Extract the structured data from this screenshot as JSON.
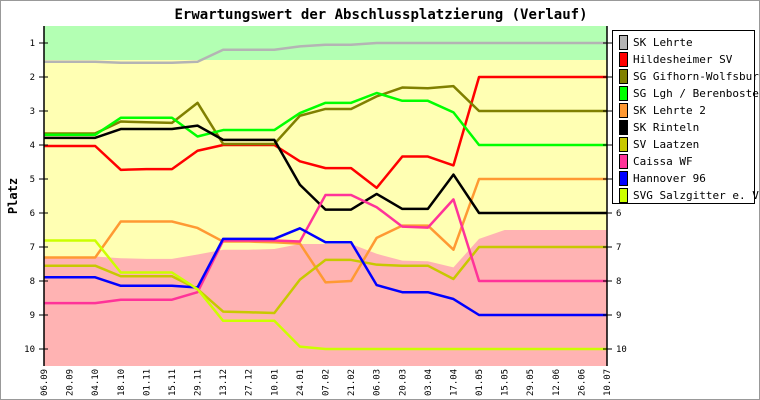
{
  "chart_data": {
    "type": "line",
    "title": "Erwartungswert der Abschlussplatzierung (Verlauf)",
    "xlabel": "",
    "ylabel": "Platz",
    "ylim": [
      10.5,
      0.5
    ],
    "y_ticks": [
      1,
      2,
      3,
      4,
      5,
      6,
      7,
      8,
      9,
      10
    ],
    "y_inverted": true,
    "legend_position": "right",
    "categories": [
      "06.09",
      "20.09",
      "04.10",
      "18.10",
      "01.11",
      "15.11",
      "29.11",
      "13.12",
      "27.12",
      "10.01",
      "24.01",
      "07.02",
      "21.02",
      "06.03",
      "20.03",
      "03.04",
      "17.04",
      "01.05",
      "15.05",
      "29.05",
      "12.06",
      "26.06",
      "10.07"
    ],
    "zones": {
      "promotion": {
        "color": "#b3ffb3",
        "from": 0.5,
        "to": 1.5
      },
      "middle": {
        "color": "#ffffb3"
      },
      "relegation": {
        "color": "#ffb3b3",
        "boundary": [
          7.28,
          7.28,
          7.28,
          7.33,
          7.35,
          7.35,
          7.22,
          7.08,
          7.08,
          7.06,
          6.91,
          6.91,
          6.91,
          7.2,
          7.4,
          7.42,
          7.6,
          6.76,
          6.5,
          6.5,
          6.5,
          6.5,
          6.5
        ]
      }
    },
    "series": [
      {
        "name": "SK Lehrte",
        "color": "#b4b4b4",
        "values": [
          1.55,
          1.55,
          1.55,
          1.58,
          1.58,
          1.58,
          1.55,
          1.2,
          1.2,
          1.2,
          1.1,
          1.05,
          1.05,
          1,
          1,
          1,
          1,
          1,
          1,
          1,
          1,
          1,
          1
        ]
      },
      {
        "name": "Hildesheimer SV",
        "color": "#ff0000",
        "values": [
          4.03,
          4.03,
          4.03,
          4.73,
          4.71,
          4.71,
          4.17,
          4.0,
          4.0,
          4.0,
          4.48,
          4.68,
          4.68,
          5.26,
          4.34,
          4.34,
          4.6,
          2,
          2,
          2,
          2,
          2,
          2
        ]
      },
      {
        "name": "SG Gifhorn-Wolfsburg",
        "color": "#808000",
        "values": [
          3.66,
          3.66,
          3.66,
          3.31,
          3.33,
          3.35,
          2.76,
          3.97,
          3.97,
          3.97,
          3.14,
          2.94,
          2.94,
          2.57,
          2.31,
          2.33,
          2.27,
          3,
          3,
          3,
          3,
          3,
          3
        ]
      },
      {
        "name": "SG Lgh / Berenbostel",
        "color": "#00ff00",
        "values": [
          3.7,
          3.7,
          3.7,
          3.2,
          3.2,
          3.2,
          3.75,
          3.56,
          3.56,
          3.56,
          3.06,
          2.76,
          2.76,
          2.47,
          2.7,
          2.7,
          3.04,
          4,
          4,
          4,
          4,
          4,
          4
        ]
      },
      {
        "name": "SK Lehrte 2",
        "color": "#ff9933",
        "values": [
          7.31,
          7.31,
          7.31,
          6.25,
          6.25,
          6.25,
          6.44,
          6.84,
          6.84,
          6.86,
          6.9,
          8.04,
          8.0,
          6.73,
          6.37,
          6.37,
          7.08,
          5,
          5,
          5,
          5,
          5,
          5
        ]
      },
      {
        "name": "SK Rinteln",
        "color": "#000000",
        "values": [
          3.79,
          3.79,
          3.79,
          3.53,
          3.53,
          3.53,
          3.43,
          3.85,
          3.85,
          3.85,
          5.17,
          5.9,
          5.9,
          5.44,
          5.88,
          5.88,
          4.87,
          6,
          6,
          6,
          6,
          6,
          6
        ]
      },
      {
        "name": "SV Laatzen",
        "color": "#c8c800",
        "values": [
          7.55,
          7.55,
          7.55,
          7.86,
          7.86,
          7.86,
          8.24,
          8.9,
          8.92,
          8.94,
          7.96,
          7.38,
          7.38,
          7.52,
          7.55,
          7.55,
          7.94,
          7,
          7,
          7,
          7,
          7,
          7
        ]
      },
      {
        "name": "Caissa WF",
        "color": "#ff3399",
        "values": [
          8.65,
          8.65,
          8.65,
          8.55,
          8.55,
          8.55,
          8.33,
          6.81,
          6.81,
          6.81,
          6.84,
          5.47,
          5.47,
          5.83,
          6.4,
          6.43,
          5.6,
          8,
          8,
          8,
          8,
          8,
          8
        ]
      },
      {
        "name": "Hannover 96",
        "color": "#0000ff",
        "values": [
          7.89,
          7.89,
          7.89,
          8.14,
          8.14,
          8.14,
          8.19,
          6.76,
          6.76,
          6.76,
          6.45,
          6.86,
          6.86,
          8.12,
          8.33,
          8.33,
          8.53,
          9,
          9,
          9,
          9,
          9,
          9
        ]
      },
      {
        "name": "SVG Salzgitter e. V.",
        "color": "#ccff00",
        "values": [
          6.81,
          6.81,
          6.81,
          7.75,
          7.75,
          7.75,
          8.24,
          9.17,
          9.17,
          9.17,
          9.93,
          10,
          10,
          10,
          10,
          10,
          10,
          10,
          10,
          10,
          10,
          10,
          10
        ]
      }
    ]
  }
}
